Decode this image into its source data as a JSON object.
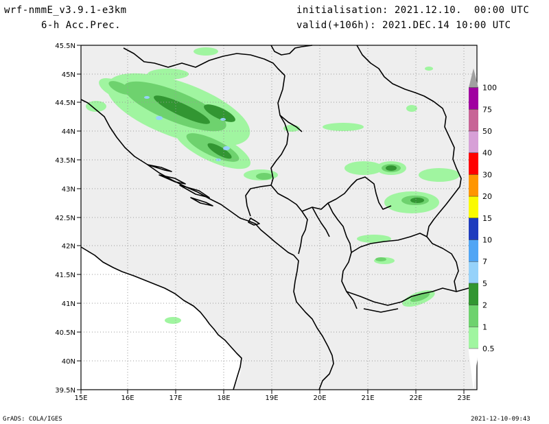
{
  "header": {
    "model": "wrf-nmmE_v3.9.1-e3km",
    "field": "6-h Acc.Prec.",
    "init": "initialisation: 2021.12.10.  00:00 UTC",
    "valid": "valid(+106h): 2021.DEC.14 10:00 UTC"
  },
  "footer": {
    "credit": "GrADS: COLA/IGES",
    "timestamp": "2021-12-10-09:43"
  },
  "axes": {
    "lat_labels": [
      "45.5N",
      "45N",
      "44.5N",
      "44N",
      "43.5N",
      "43N",
      "42.5N",
      "42N",
      "41.5N",
      "41N",
      "40.5N",
      "40N",
      "39.5N"
    ],
    "lon_labels": [
      "15E",
      "16E",
      "17E",
      "18E",
      "19E",
      "20E",
      "21E",
      "22E",
      "23E"
    ]
  },
  "colorbar": {
    "levels": [
      "0.5",
      "1",
      "2",
      "5",
      "7",
      "10",
      "15",
      "20",
      "30",
      "40",
      "50",
      "75",
      "100"
    ],
    "colors": [
      "#a0f5a0",
      "#6ed26e",
      "#329632",
      "#96d2fa",
      "#50a5f5",
      "#1e3cbe",
      "#fafa00",
      "#ff9600",
      "#ff0000",
      "#d7a0d7",
      "#c86496",
      "#a000a0",
      "#a0a0a0"
    ]
  }
}
